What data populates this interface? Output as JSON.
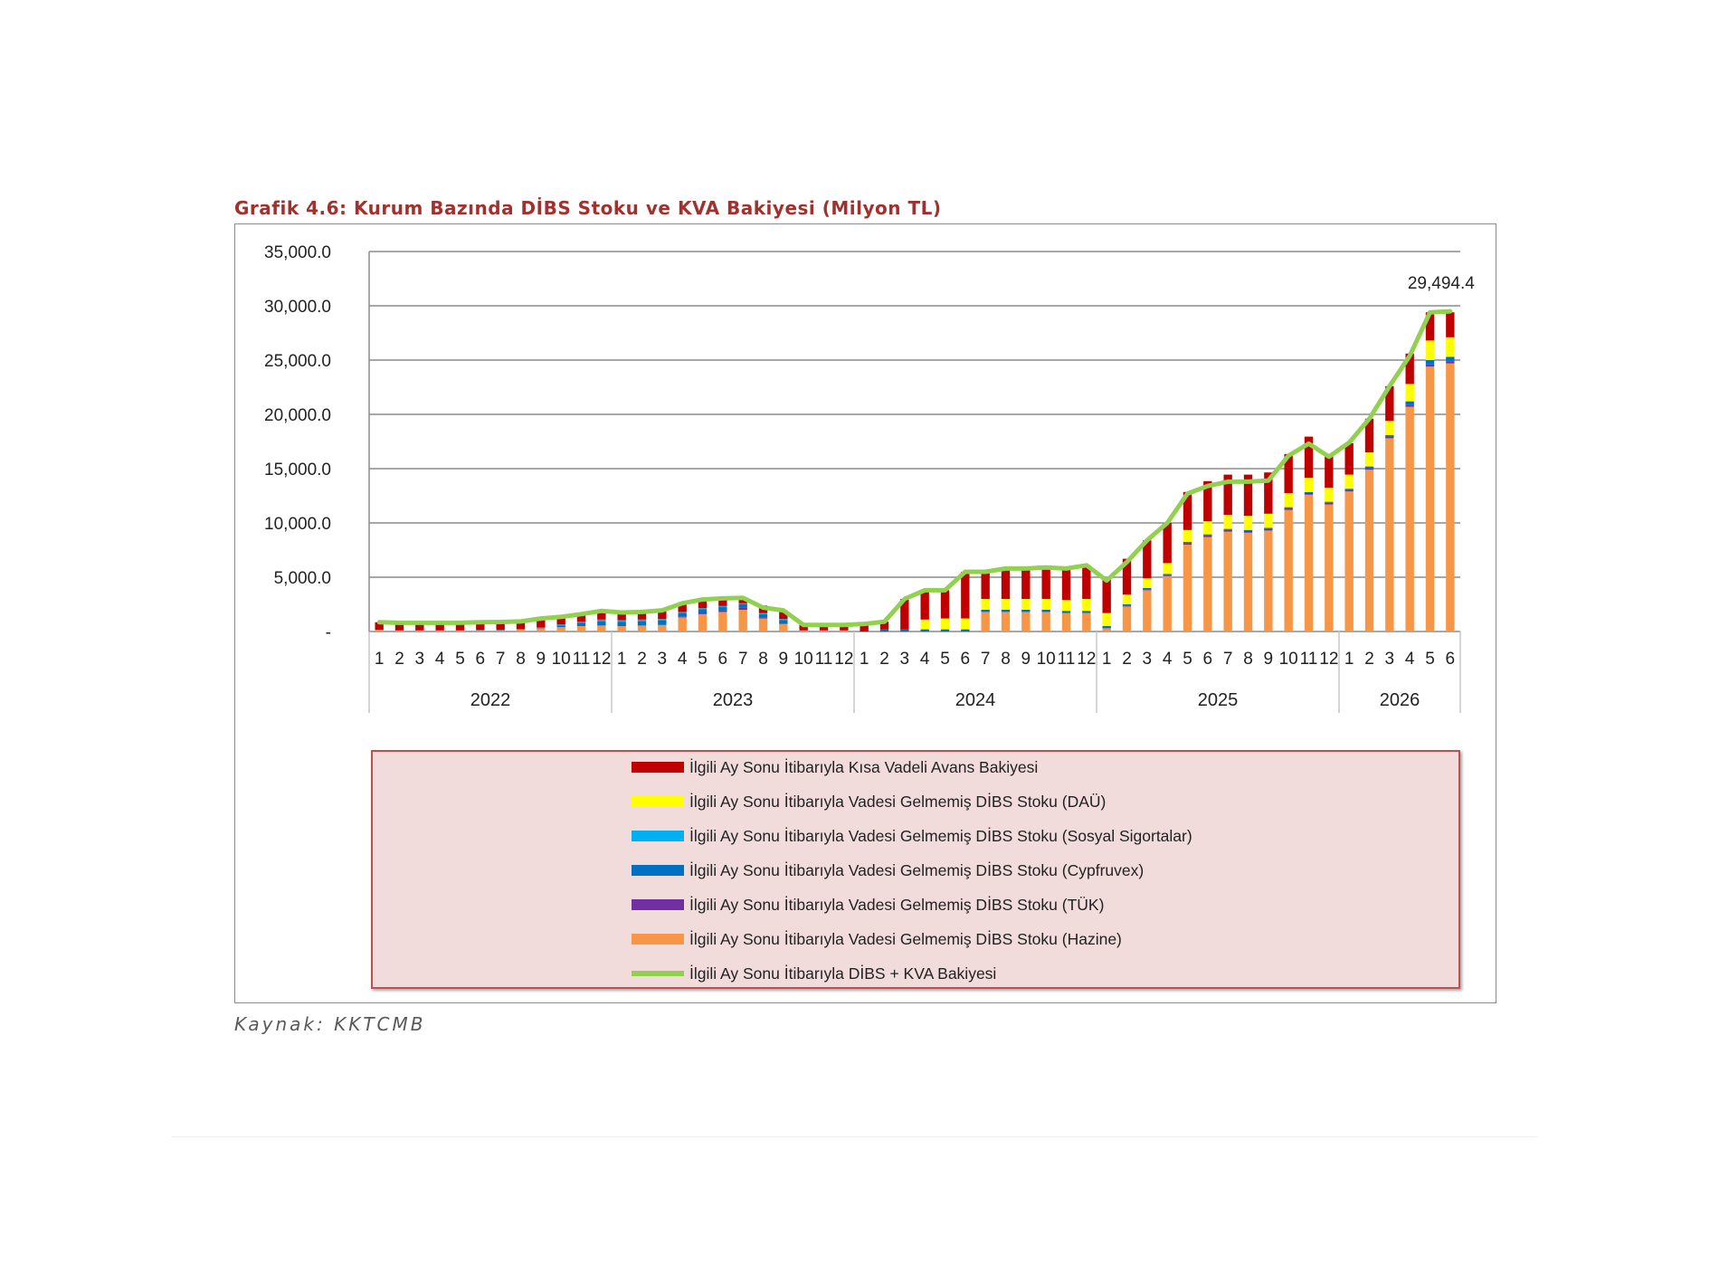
{
  "title": "Grafik 4.6: Kurum Bazında DİBS Stoku ve KVA Bakiyesi (Milyon TL)",
  "source": "Kaynak: KKTCMB",
  "chart_data": {
    "type": "bar",
    "stacked": true,
    "title": "Grafik 4.6: Kurum Bazında DİBS Stoku ve KVA Bakiyesi (Milyon TL)",
    "ylim": [
      0,
      35000
    ],
    "y_ticks": [
      "-",
      "5,000.0",
      "10,000.0",
      "15,000.0",
      "20,000.0",
      "25,000.0",
      "30,000.0",
      "35,000.0"
    ],
    "y_tick_values": [
      0,
      5000,
      10000,
      15000,
      20000,
      25000,
      30000,
      35000
    ],
    "grid": true,
    "legend_position": "bottom",
    "years": [
      {
        "label": "2022",
        "months": 12
      },
      {
        "label": "2023",
        "months": 12
      },
      {
        "label": "2024",
        "months": 12
      },
      {
        "label": "2025",
        "months": 12
      },
      {
        "label": "2026",
        "months": 6
      }
    ],
    "categories": [
      "1",
      "2",
      "3",
      "4",
      "5",
      "6",
      "7",
      "8",
      "9",
      "10",
      "11",
      "12",
      "1",
      "2",
      "3",
      "4",
      "5",
      "6",
      "7",
      "8",
      "9",
      "10",
      "11",
      "12",
      "1",
      "2",
      "3",
      "4",
      "5",
      "6",
      "7",
      "8",
      "9",
      "10",
      "11",
      "12",
      "1",
      "2",
      "3",
      "4",
      "5",
      "6",
      "7",
      "8",
      "9",
      "10",
      "11",
      "12",
      "1",
      "2",
      "3",
      "4",
      "5",
      "6"
    ],
    "annotation": {
      "text": "29,494.4",
      "index": 53
    },
    "series": [
      {
        "name": "İlgili Ay Sonu İtibarıyla Vadesi Gelmemiş DİBS Stoku (Hazine)",
        "color": "#f79646",
        "values": [
          150,
          100,
          100,
          100,
          100,
          100,
          120,
          180,
          300,
          400,
          500,
          550,
          500,
          550,
          600,
          1300,
          1600,
          1800,
          2000,
          1200,
          700,
          100,
          100,
          100,
          0,
          0,
          0,
          0,
          0,
          0,
          1800,
          1800,
          1800,
          1800,
          1700,
          1700,
          300,
          2300,
          3800,
          5100,
          8000,
          8700,
          9200,
          9100,
          9300,
          11200,
          12600,
          11700,
          12900,
          14900,
          17800,
          20700,
          24400,
          24700
        ]
      },
      {
        "name": "İlgili Ay Sonu İtibarıyla Vadesi Gelmemiş DİBS Stoku (TÜK)",
        "color": "#7030a0",
        "values": [
          0,
          0,
          0,
          0,
          0,
          0,
          0,
          0,
          0,
          0,
          0,
          0,
          0,
          0,
          0,
          100,
          150,
          150,
          200,
          100,
          50,
          0,
          0,
          0,
          0,
          0,
          0,
          0,
          0,
          0,
          0,
          0,
          0,
          0,
          0,
          0,
          0,
          100,
          100,
          100,
          150,
          150,
          150,
          150,
          150,
          150,
          150,
          150,
          150,
          150,
          150,
          200,
          200,
          200
        ]
      },
      {
        "name": "İlgili Ay Sonu İtibarıyla Vadesi Gelmemiş DİBS Stoku (Cypfruvex)",
        "color": "#0070c0",
        "values": [
          0,
          0,
          0,
          0,
          0,
          50,
          50,
          50,
          100,
          150,
          300,
          400,
          400,
          400,
          400,
          300,
          300,
          300,
          300,
          300,
          300,
          0,
          0,
          0,
          0,
          200,
          200,
          200,
          200,
          200,
          200,
          200,
          200,
          200,
          200,
          200,
          200,
          100,
          100,
          100,
          100,
          100,
          100,
          100,
          100,
          100,
          100,
          100,
          100,
          150,
          150,
          300,
          400,
          400
        ]
      },
      {
        "name": "İlgili Ay Sonu İtibarıyla Vadesi Gelmemiş DİBS Stoku (Sosyal Sigortalar)",
        "color": "#00b0f0",
        "values": [
          0,
          0,
          0,
          0,
          0,
          0,
          0,
          0,
          0,
          100,
          100,
          150,
          150,
          150,
          150,
          100,
          100,
          100,
          100,
          100,
          100,
          0,
          0,
          0,
          0,
          0,
          0,
          0,
          0,
          0,
          0,
          0,
          0,
          0,
          0,
          0,
          0,
          0,
          0,
          0,
          0,
          0,
          0,
          0,
          0,
          0,
          0,
          0,
          0,
          0,
          0,
          0,
          0,
          0
        ]
      },
      {
        "name": "İlgili Ay Sonu İtibarıyla Vadesi Gelmemiş DİBS Stoku (DAÜ)",
        "color": "#ffff00",
        "values": [
          0,
          0,
          0,
          0,
          0,
          0,
          0,
          0,
          0,
          0,
          0,
          0,
          0,
          0,
          0,
          0,
          0,
          0,
          0,
          0,
          0,
          0,
          0,
          0,
          0,
          0,
          0,
          900,
          1000,
          1000,
          1000,
          1000,
          1000,
          1000,
          1000,
          1100,
          1200,
          900,
          900,
          1000,
          1100,
          1200,
          1300,
          1300,
          1300,
          1300,
          1300,
          1300,
          1300,
          1300,
          1300,
          1600,
          1800,
          1800
        ]
      },
      {
        "name": "İlgili Ay Sonu İtibarıyla Kısa Vadeli Avans Bakiyesi",
        "color": "#c00000",
        "values": [
          700,
          700,
          700,
          700,
          700,
          700,
          700,
          700,
          800,
          700,
          700,
          800,
          700,
          700,
          800,
          900,
          800,
          700,
          500,
          700,
          800,
          500,
          500,
          500,
          700,
          700,
          2800,
          2700,
          2600,
          4300,
          2500,
          2700,
          2800,
          2900,
          2900,
          3100,
          3200,
          3300,
          3500,
          3700,
          3500,
          3700,
          3700,
          3800,
          3800,
          3600,
          3800,
          3100,
          2900,
          3100,
          3200,
          2800,
          2600,
          2300
        ]
      }
    ],
    "line": {
      "name": "İlgili Ay Sonu İtibarıyla DİBS + KVA Bakiyesi",
      "color": "#92d050",
      "values": [
        850,
        800,
        800,
        800,
        800,
        850,
        870,
        930,
        1200,
        1350,
        1600,
        1900,
        1750,
        1800,
        1950,
        2600,
        2950,
        3050,
        3100,
        2200,
        1950,
        600,
        600,
        600,
        700,
        900,
        3000,
        3800,
        3800,
        5500,
        5500,
        5800,
        5800,
        5900,
        5800,
        6100,
        4700,
        6400,
        8400,
        10000,
        12700,
        13400,
        13800,
        13800,
        13900,
        16200,
        17300,
        16100,
        17400,
        19600,
        22600,
        25400,
        29400,
        29494.4
      ]
    }
  },
  "legend": [
    {
      "label": "İlgili Ay Sonu İtibarıyla Kısa Vadeli Avans Bakiyesi",
      "color": "#c00000",
      "kind": "bar"
    },
    {
      "label": "İlgili Ay Sonu İtibarıyla Vadesi Gelmemiş DİBS Stoku (DAÜ)",
      "color": "#ffff00",
      "kind": "bar"
    },
    {
      "label": "İlgili Ay Sonu İtibarıyla Vadesi Gelmemiş DİBS Stoku (Sosyal Sigortalar)",
      "color": "#00b0f0",
      "kind": "bar"
    },
    {
      "label": "İlgili Ay Sonu İtibarıyla Vadesi Gelmemiş DİBS Stoku (Cypfruvex)",
      "color": "#0070c0",
      "kind": "bar"
    },
    {
      "label": "İlgili Ay Sonu İtibarıyla Vadesi Gelmemiş DİBS Stoku (TÜK)",
      "color": "#7030a0",
      "kind": "bar"
    },
    {
      "label": "İlgili Ay Sonu İtibarıyla Vadesi Gelmemiş DİBS Stoku (Hazine)",
      "color": "#f79646",
      "kind": "bar"
    },
    {
      "label": "İlgili Ay Sonu İtibarıyla DİBS + KVA Bakiyesi",
      "color": "#92d050",
      "kind": "line"
    }
  ]
}
